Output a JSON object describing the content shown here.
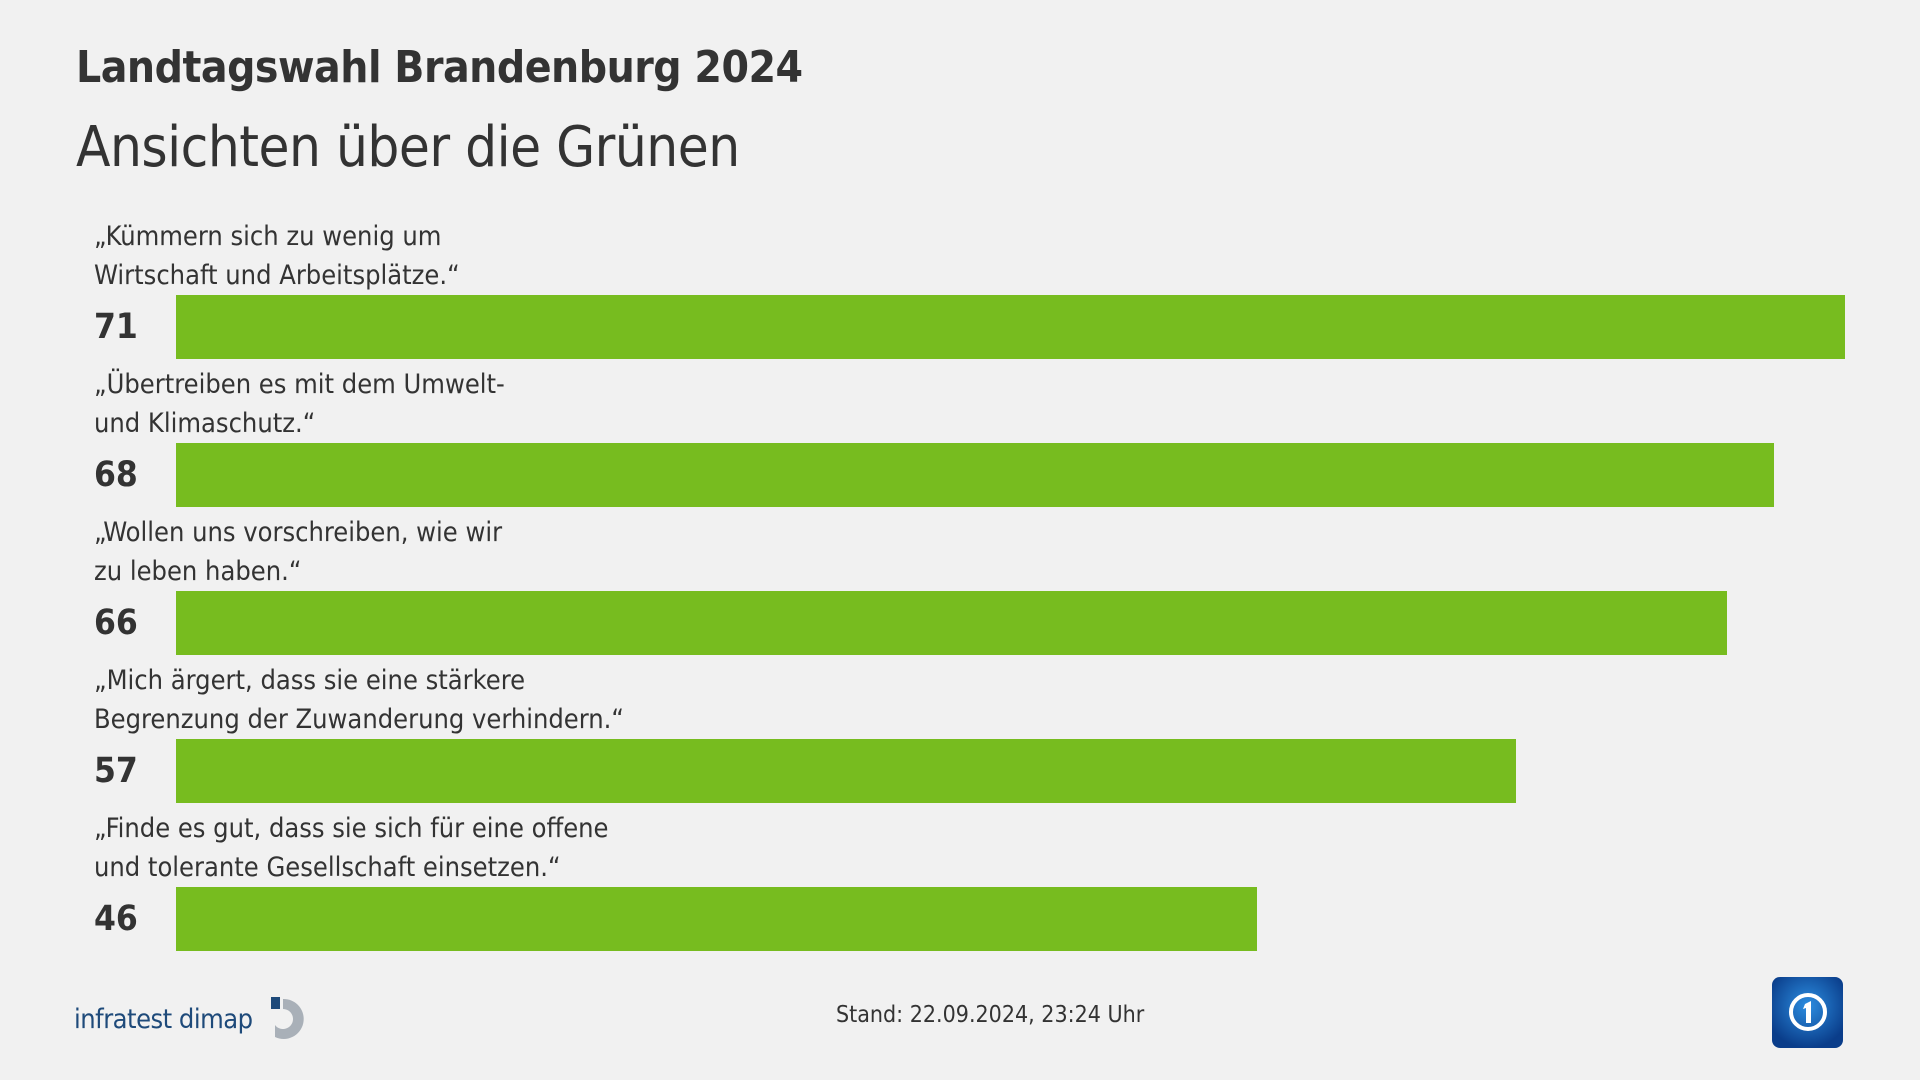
{
  "header": {
    "title": "Landtagswahl Brandenburg 2024",
    "subtitle": "Ansichten über die Grünen"
  },
  "chart_data": {
    "type": "bar",
    "orientation": "horizontal",
    "categories": [
      "„Kümmern sich zu wenig um\nWirtschaft und Arbeitsplätze.“",
      "„Übertreiben es mit dem Umwelt-\nund Klimaschutz.“",
      "„Wollen uns vorschreiben, wie wir\nzu leben haben.“",
      "„Mich ärgert, dass sie eine stärkere\nBegrenzung der Zuwanderung verhindern.“",
      "„Finde es gut, dass sie sich für eine offene\nund tolerante Gesellschaft einsetzen.“"
    ],
    "values": [
      71,
      68,
      66,
      57,
      46
    ],
    "value_labels": [
      "71",
      "68",
      "66",
      "57",
      "46"
    ],
    "bar_color": "#77bc1f",
    "grid": false
  },
  "footer": {
    "source": "infratest dimap",
    "stand": "Stand:  22.09.2024, 23:24 Uhr",
    "broadcaster_logo": "ARD-1-logo"
  }
}
